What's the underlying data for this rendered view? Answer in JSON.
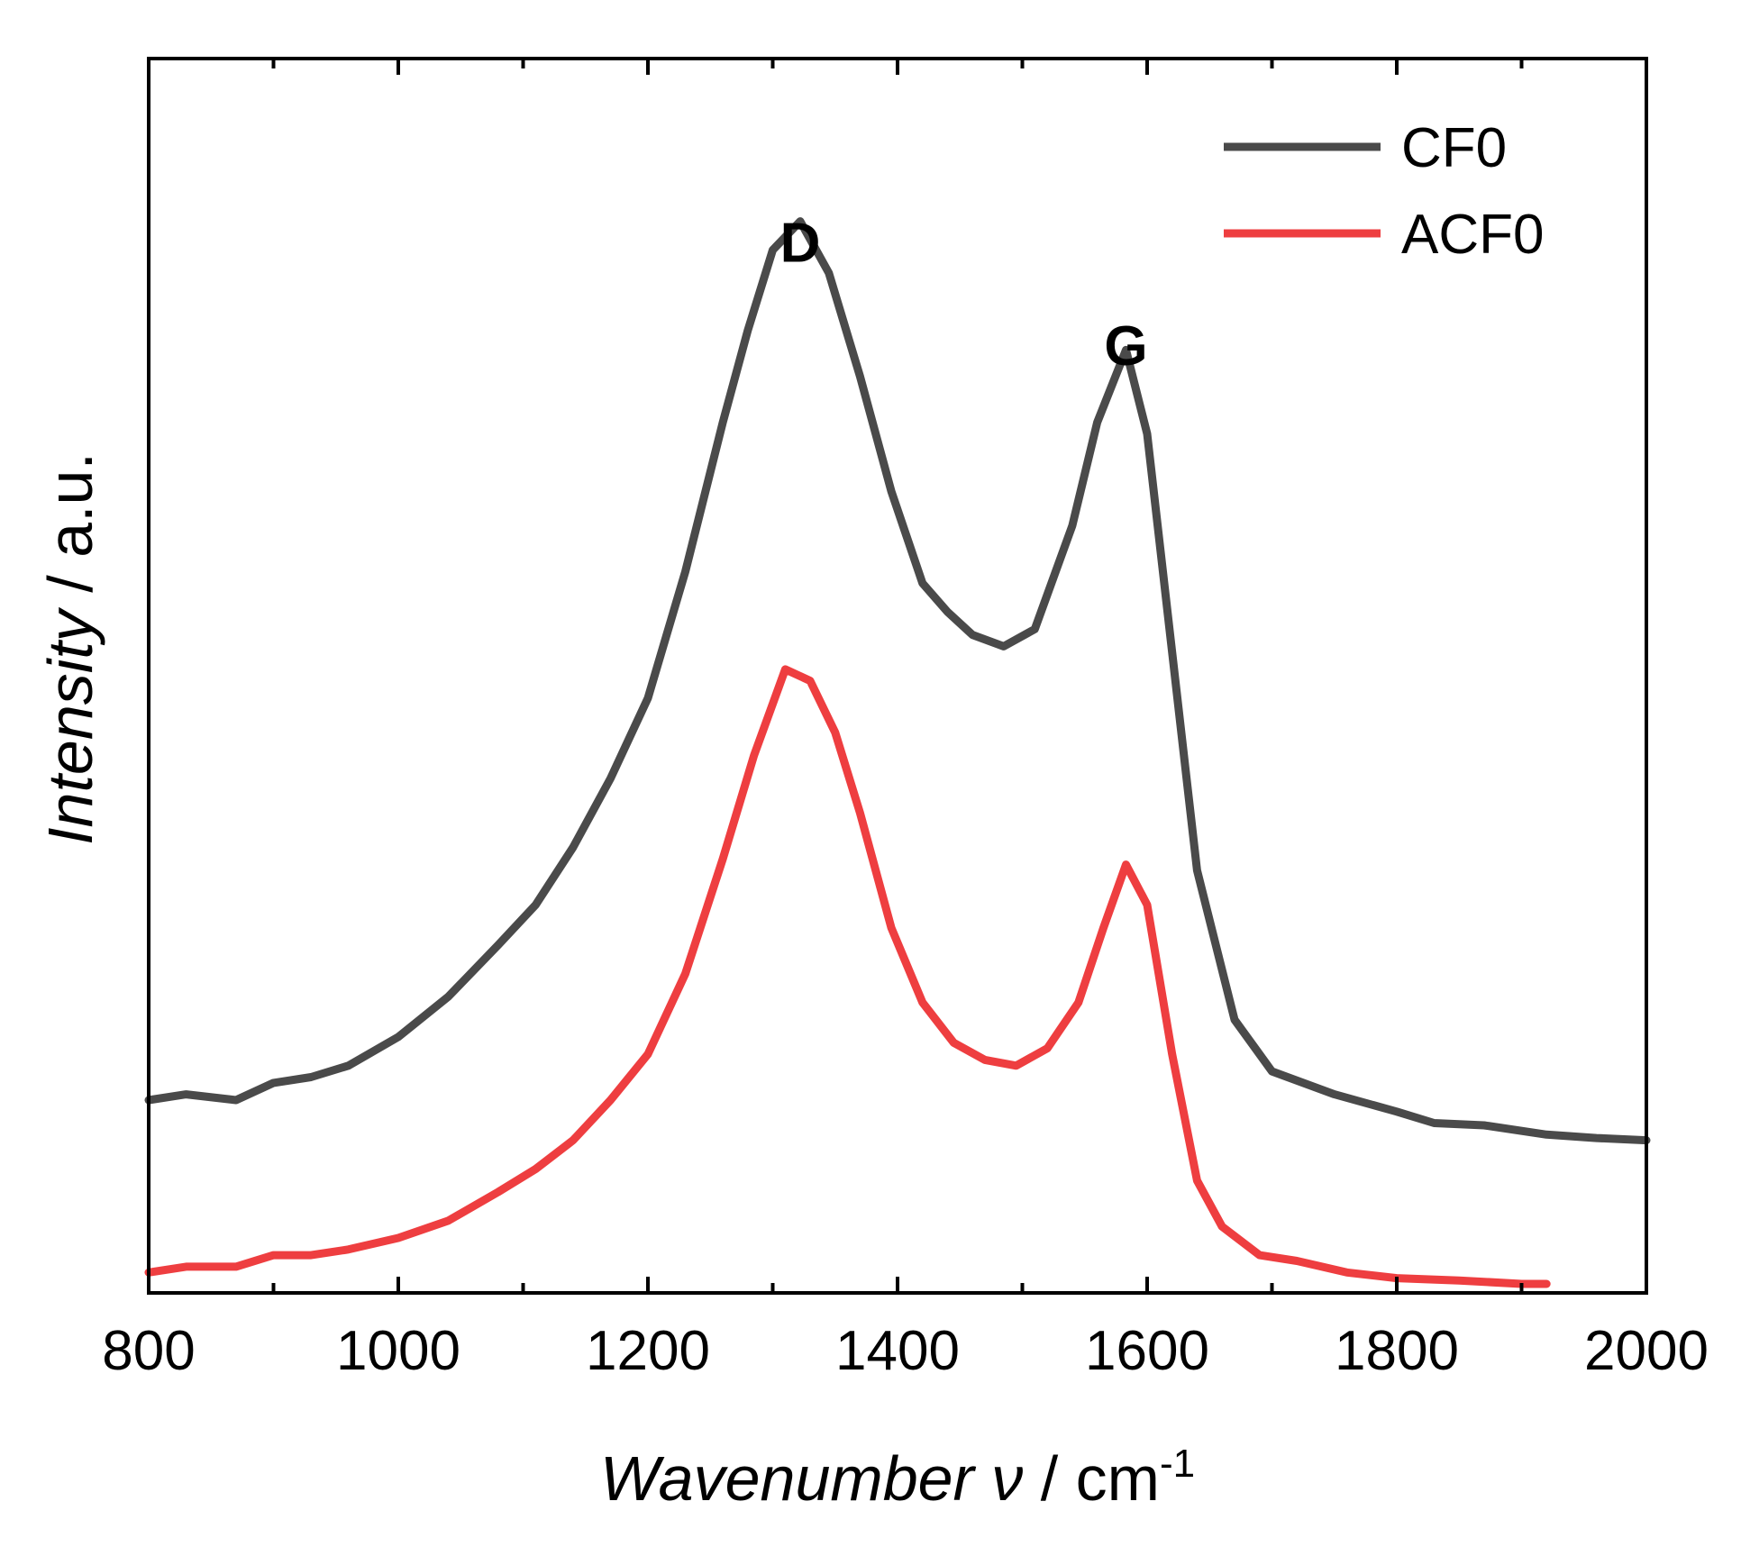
{
  "chart_data": {
    "type": "line",
    "title": "",
    "xlabel_main": "Wavenumber",
    "xlabel_symbol": "ν",
    "xlabel_unit_prefix": "/ cm",
    "xlabel_unit_exp": "-1",
    "ylabel_main": "Intensity",
    "ylabel_unit": " / a.u.",
    "xlim": [
      800,
      2000
    ],
    "ylim": [
      0,
      1
    ],
    "xticks": [
      800,
      1000,
      1200,
      1400,
      1600,
      1800,
      2000
    ],
    "xtick_labels": [
      "800",
      "1000",
      "1200",
      "1400",
      "1600",
      "1800",
      "2000"
    ],
    "yticks_shown": false,
    "legend_position": "top-right",
    "annotations": [
      {
        "text": "D",
        "x": 1322,
        "y": 0.89
      },
      {
        "text": "G",
        "x": 1583,
        "y": 0.8
      }
    ],
    "series": [
      {
        "name": "CF0",
        "color": "#4a4a4a",
        "x": [
          800,
          830,
          870,
          900,
          930,
          960,
          1000,
          1040,
          1080,
          1110,
          1140,
          1170,
          1200,
          1230,
          1260,
          1280,
          1300,
          1322,
          1345,
          1370,
          1395,
          1420,
          1440,
          1460,
          1485,
          1510,
          1540,
          1560,
          1583,
          1600,
          1620,
          1640,
          1670,
          1700,
          1750,
          1800,
          1830,
          1870,
          1920,
          1960,
          2000
        ],
        "y": [
          0.16,
          0.165,
          0.16,
          0.175,
          0.18,
          0.19,
          0.215,
          0.25,
          0.295,
          0.33,
          0.38,
          0.44,
          0.51,
          0.62,
          0.75,
          0.83,
          0.9,
          0.925,
          0.88,
          0.79,
          0.69,
          0.61,
          0.585,
          0.565,
          0.555,
          0.57,
          0.66,
          0.75,
          0.813,
          0.74,
          0.55,
          0.36,
          0.23,
          0.185,
          0.165,
          0.15,
          0.14,
          0.138,
          0.13,
          0.127,
          0.125
        ]
      },
      {
        "name": "ACF0",
        "color": "#ee3e40",
        "x": [
          800,
          830,
          870,
          900,
          930,
          960,
          1000,
          1040,
          1080,
          1110,
          1140,
          1170,
          1200,
          1230,
          1260,
          1285,
          1310,
          1330,
          1350,
          1370,
          1395,
          1420,
          1445,
          1470,
          1495,
          1520,
          1545,
          1565,
          1583,
          1600,
          1620,
          1640,
          1660,
          1690,
          1720,
          1760,
          1800,
          1850,
          1900,
          1920
        ],
        "y": [
          0.01,
          0.015,
          0.015,
          0.025,
          0.025,
          0.03,
          0.04,
          0.055,
          0.08,
          0.1,
          0.125,
          0.16,
          0.2,
          0.27,
          0.37,
          0.46,
          0.535,
          0.525,
          0.48,
          0.41,
          0.31,
          0.245,
          0.21,
          0.195,
          0.19,
          0.205,
          0.245,
          0.31,
          0.365,
          0.33,
          0.2,
          0.09,
          0.05,
          0.025,
          0.02,
          0.01,
          0.005,
          0.003,
          0.0,
          0.0
        ]
      }
    ]
  }
}
